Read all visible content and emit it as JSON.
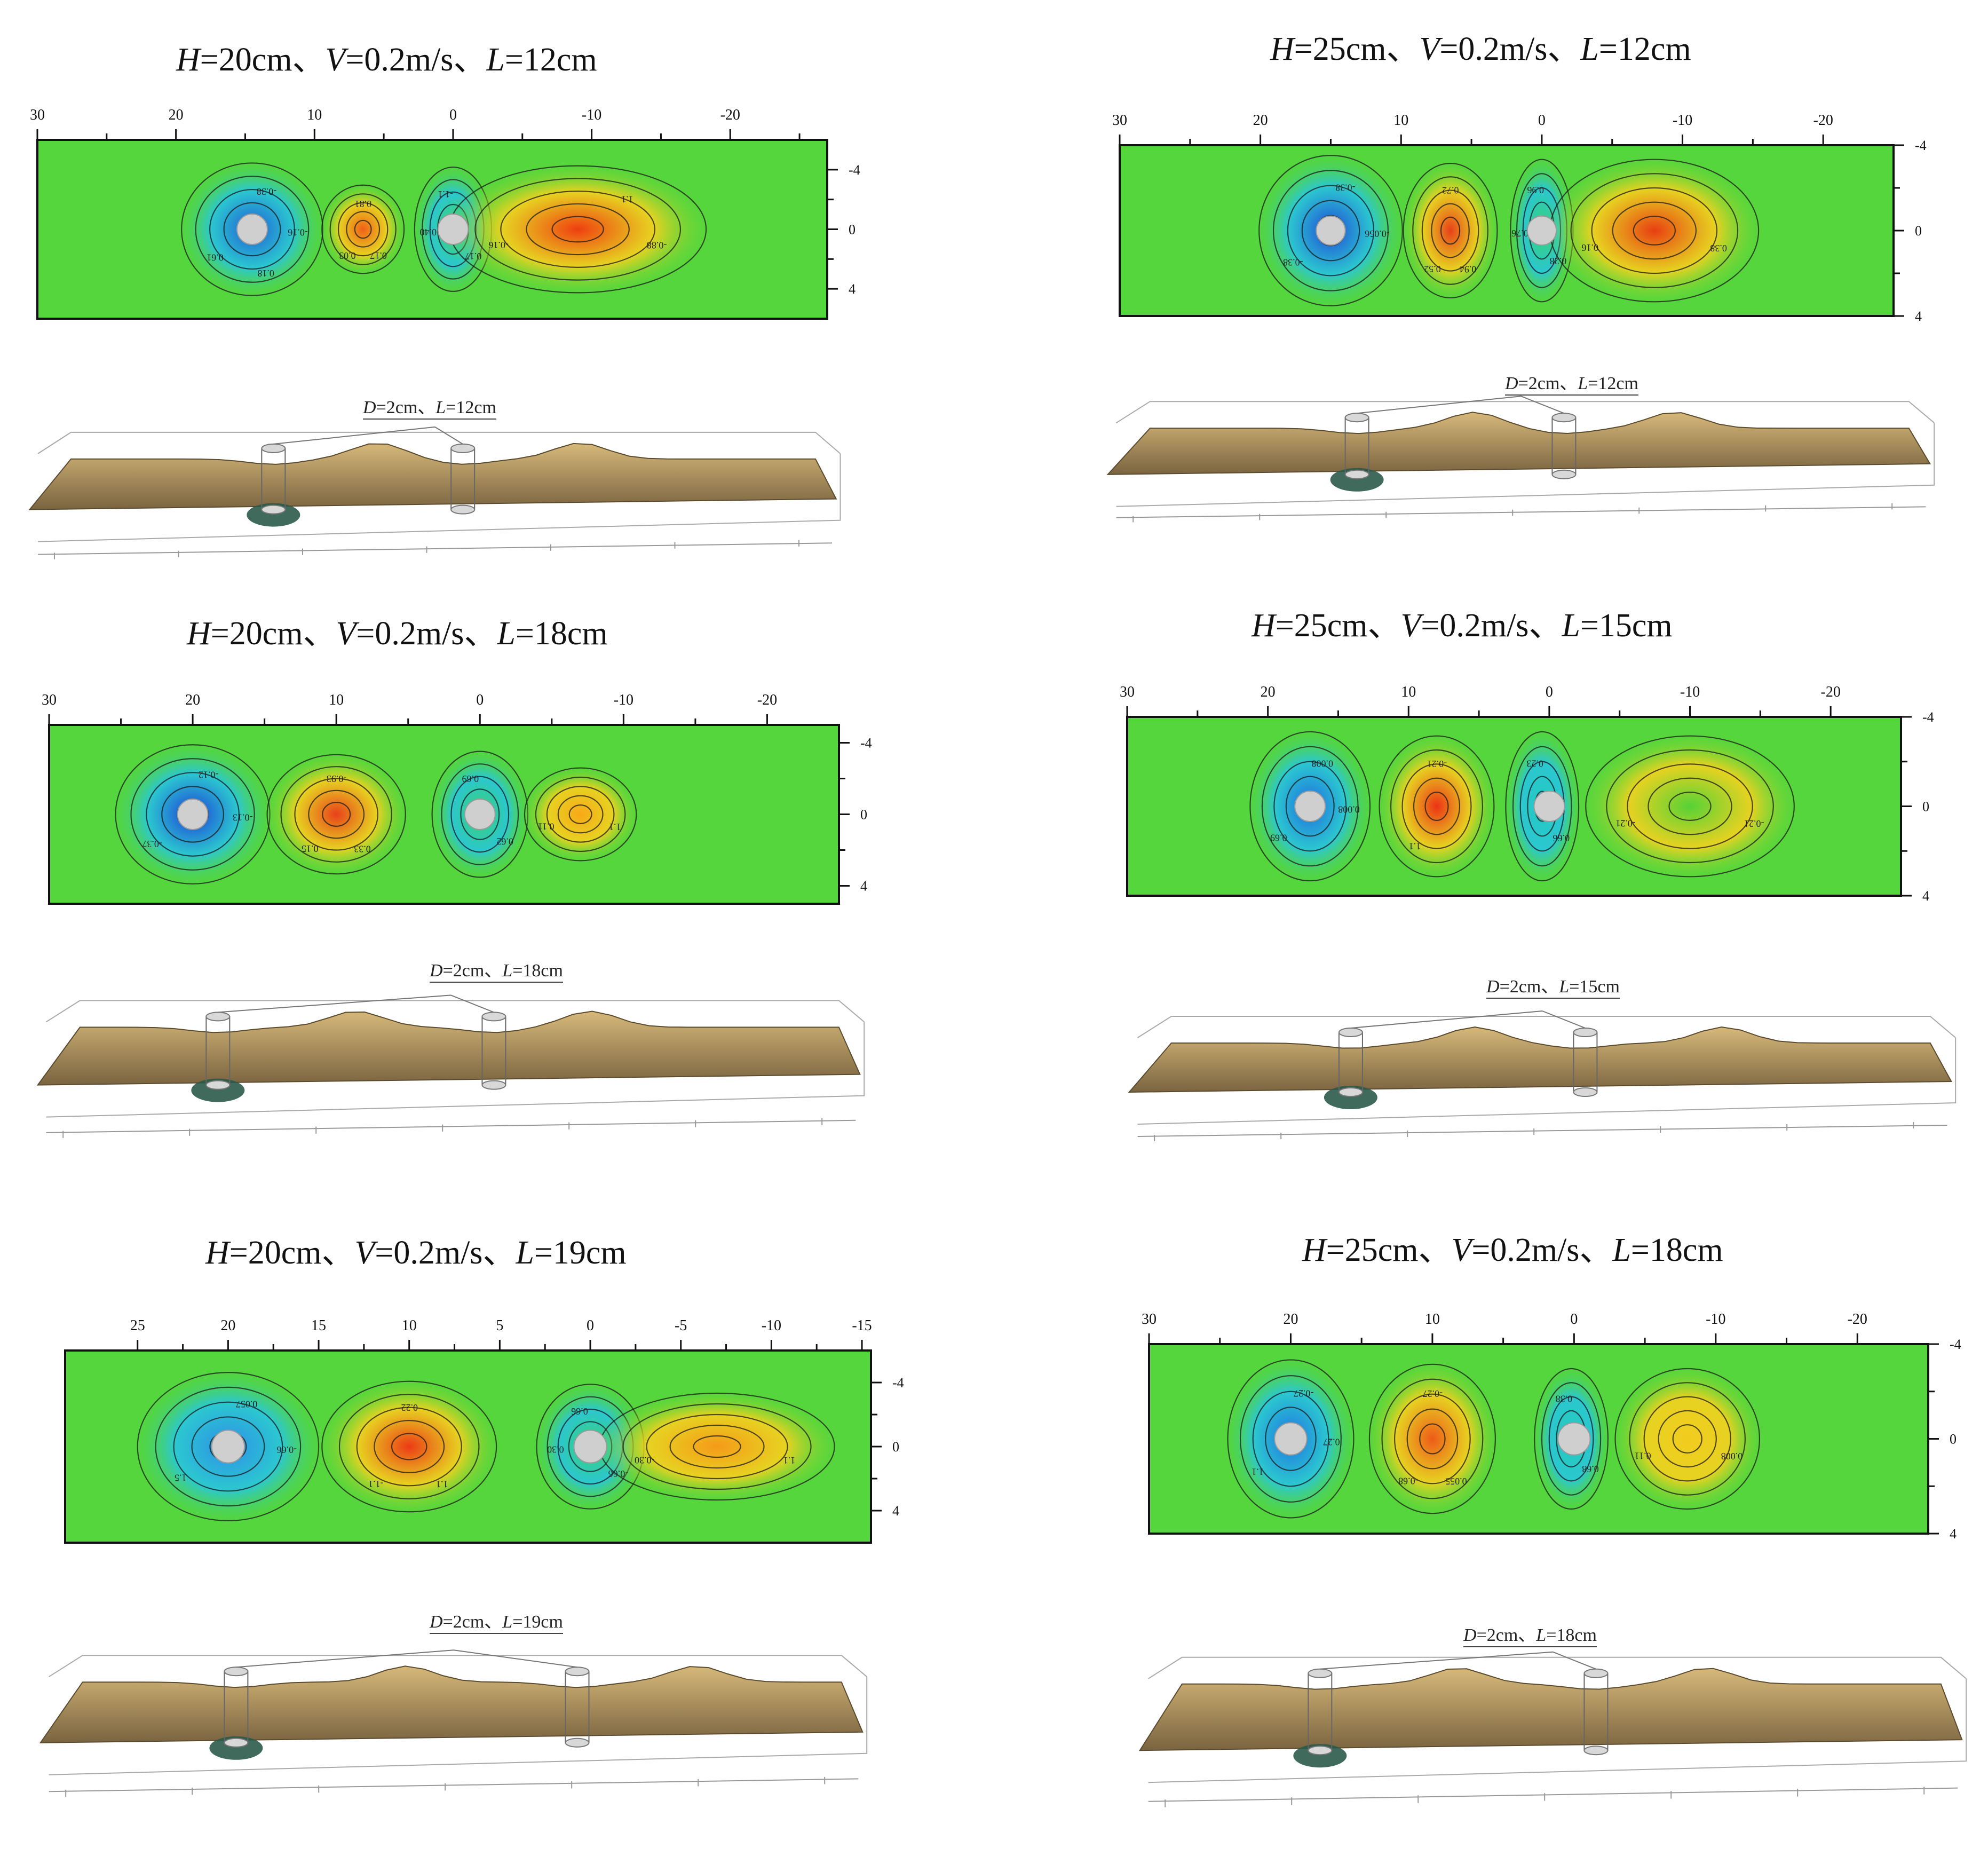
{
  "chart_data": [
    {
      "type": "heatmap",
      "title": {
        "H": "H",
        "h_val": "=20cm、",
        "V": "V",
        "v_val": "=0.2m/s、",
        "L": "L",
        "l_val": "=12cm"
      },
      "x_ticks": [
        "30",
        "20",
        "10",
        "0",
        "-10",
        "-20"
      ],
      "x_tick_values": [
        30,
        20,
        10,
        0,
        -10,
        -20
      ],
      "x_range": [
        30,
        -27
      ],
      "y_ticks": [
        "-4",
        "0",
        "4"
      ],
      "y_tick_values": [
        -4,
        0,
        4
      ],
      "y_range": [
        -6,
        6
      ],
      "piers_x": [
        14.5,
        0
      ],
      "blobs": [
        {
          "x": 14.5,
          "y": 0,
          "rx": 5.5,
          "ry": 4.8,
          "color": "#1f5bd6",
          "kind": "scour"
        },
        {
          "x": 6.5,
          "y": 0,
          "rx": 3.2,
          "ry": 3.2,
          "color": "#f06018",
          "kind": "deposit"
        },
        {
          "x": 0,
          "y": 0,
          "rx": 3.0,
          "ry": 4.5,
          "color": "#3ad46a",
          "kind": "scour"
        },
        {
          "x": -9,
          "y": 0,
          "rx": 10,
          "ry": 4.6,
          "color": "#ef3e10",
          "kind": "deposit"
        }
      ],
      "contour_labels": [
        "-0.16",
        "0.03",
        "-1.1",
        "-0.88",
        "0.61",
        "0.81",
        "0.17",
        "-0.16",
        "-0.38",
        "0.17",
        "0.40",
        "1.1",
        "0.18"
      ],
      "subtitle": {
        "D": "D",
        "d_val": "=2cm、",
        "L": "L",
        "l_val": "=12cm"
      }
    },
    {
      "type": "heatmap",
      "title": {
        "H": "H",
        "h_val": "=25cm、",
        "V": "V",
        "v_val": "=0.2m/s、",
        "L": "L",
        "l_val": "=12cm"
      },
      "x_ticks": [
        "30",
        "20",
        "10",
        "0",
        "-10",
        "-20"
      ],
      "x_tick_values": [
        30,
        20,
        10,
        0,
        -10,
        -20
      ],
      "x_range": [
        30,
        -25
      ],
      "y_ticks": [
        "-4",
        "0",
        "4"
      ],
      "y_tick_values": [
        -4,
        0,
        4
      ],
      "y_range": [
        -4,
        4
      ],
      "piers_x": [
        15,
        0
      ],
      "blobs": [
        {
          "x": 15,
          "y": 0,
          "rx": 5.5,
          "ry": 3.8,
          "color": "#1f48d8",
          "kind": "scour"
        },
        {
          "x": 6.5,
          "y": 0,
          "rx": 3.6,
          "ry": 3.4,
          "color": "#e8401a",
          "kind": "deposit"
        },
        {
          "x": 0,
          "y": 0,
          "rx": 2.4,
          "ry": 3.6,
          "color": "#36d26c",
          "kind": "scour"
        },
        {
          "x": -8,
          "y": 0,
          "rx": 8,
          "ry": 3.6,
          "color": "#e83e12",
          "kind": "deposit"
        }
      ],
      "contour_labels": [
        "-0.056",
        "0.52",
        "0.96",
        "0.38",
        "-0.38",
        "0.72",
        "0.28",
        "0.16",
        "-0.38",
        "0.94",
        "-0.76"
      ],
      "subtitle": {
        "D": "D",
        "d_val": "=2cm、",
        "L": "L",
        "l_val": "=12cm"
      }
    },
    {
      "type": "heatmap",
      "title": {
        "H": "H",
        "h_val": "=20cm、",
        "V": "V",
        "v_val": "=0.2m/s、",
        "L": "L",
        "l_val": "=18cm"
      },
      "x_ticks": [
        "30",
        "20",
        "10",
        "0",
        "-10",
        "-20"
      ],
      "x_tick_values": [
        30,
        20,
        10,
        0,
        -10,
        -20
      ],
      "x_range": [
        30,
        -25
      ],
      "y_ticks": [
        "-4",
        "0",
        "4"
      ],
      "y_tick_values": [
        -4,
        0,
        4
      ],
      "y_range": [
        -5,
        5
      ],
      "piers_x": [
        20,
        0
      ],
      "blobs": [
        {
          "x": 20,
          "y": 0,
          "rx": 5.8,
          "ry": 4.2,
          "color": "#1c3ed8",
          "kind": "scour"
        },
        {
          "x": 10,
          "y": 0,
          "rx": 5.2,
          "ry": 3.6,
          "color": "#e8401a",
          "kind": "deposit"
        },
        {
          "x": 0,
          "y": 0,
          "rx": 3.6,
          "ry": 3.8,
          "color": "#38d06a",
          "kind": "scour"
        },
        {
          "x": -7,
          "y": 0,
          "rx": 4.2,
          "ry": 2.8,
          "color": "#f8a818",
          "kind": "deposit"
        }
      ],
      "contour_labels": [
        "-0.13",
        "0.15",
        "0.69",
        "1.1",
        "-0.37",
        "-0.93",
        "0.62",
        "0.11",
        "-0.12",
        "0.33"
      ],
      "subtitle": {
        "D": "D",
        "d_val": "=2cm、",
        "L": "L",
        "l_val": "=18cm"
      }
    },
    {
      "type": "heatmap",
      "title": {
        "H": "H",
        "h_val": "=25cm、",
        "V": "V",
        "v_val": "=0.2m/s、",
        "L": "L",
        "l_val": "=15cm"
      },
      "x_ticks": [
        "30",
        "20",
        "10",
        "0",
        "-10",
        "-20"
      ],
      "x_tick_values": [
        30,
        20,
        10,
        0,
        -10,
        -20
      ],
      "x_range": [
        30,
        -25
      ],
      "y_ticks": [
        "-4",
        "0",
        "4"
      ],
      "y_tick_values": [
        -4,
        0,
        4
      ],
      "y_range": [
        -4,
        4
      ],
      "piers_x": [
        17,
        0
      ],
      "blobs": [
        {
          "x": 17,
          "y": 0,
          "rx": 4.6,
          "ry": 3.6,
          "color": "#1e6ae0",
          "kind": "scour"
        },
        {
          "x": 8,
          "y": 0,
          "rx": 4.4,
          "ry": 3.4,
          "color": "#ec3216",
          "kind": "deposit"
        },
        {
          "x": 0.5,
          "y": 0,
          "rx": 2.8,
          "ry": 3.6,
          "color": "#22c8c0",
          "kind": "scour"
        },
        {
          "x": -10,
          "y": 0,
          "rx": 8,
          "ry": 3.4,
          "color": "#54d236",
          "kind": "deposit"
        }
      ],
      "contour_labels": [
        "0.008",
        "1.1",
        "0.23",
        "-0.21",
        "0.69",
        "-0.21",
        "0.66",
        "-0.21",
        "0.008"
      ],
      "subtitle": {
        "D": "D",
        "d_val": "=2cm、",
        "L": "L",
        "l_val": "=15cm"
      }
    },
    {
      "type": "heatmap",
      "title": {
        "H": "H",
        "h_val": "=20cm、",
        "V": "V",
        "v_val": "=0.2m/s、",
        "L": "L",
        "l_val": "=19cm"
      },
      "x_ticks": [
        "25",
        "20",
        "15",
        "10",
        "5",
        "0",
        "-5",
        "-10",
        "-15"
      ],
      "x_tick_values": [
        25,
        20,
        15,
        10,
        5,
        0,
        -5,
        -10,
        -15
      ],
      "x_range": [
        29,
        -15.5
      ],
      "y_ticks": [
        "-4",
        "0",
        "4"
      ],
      "y_tick_values": [
        -4,
        0,
        4
      ],
      "y_range": [
        -6,
        6
      ],
      "piers_x": [
        20,
        0
      ],
      "blobs": [
        {
          "x": 20,
          "y": 0,
          "rx": 5.4,
          "ry": 5.0,
          "color": "#2e8ee8",
          "kind": "scour"
        },
        {
          "x": 10,
          "y": 0,
          "rx": 5.2,
          "ry": 4.4,
          "color": "#ec3a16",
          "kind": "deposit"
        },
        {
          "x": 0,
          "y": 0,
          "rx": 3.2,
          "ry": 4.2,
          "color": "#38d070",
          "kind": "scour"
        },
        {
          "x": -7,
          "y": 0,
          "rx": 7,
          "ry": 3.6,
          "color": "#f59a18",
          "kind": "deposit"
        }
      ],
      "contour_labels": [
        "-0.66",
        "-1.1",
        "0.66",
        "1.1",
        "1.5",
        "0.22",
        "-0.66",
        "-0.30",
        "0.057",
        "1.1",
        "0.30"
      ],
      "subtitle": {
        "D": "D",
        "d_val": "=2cm、",
        "L": "L",
        "l_val": "=19cm"
      }
    },
    {
      "type": "heatmap",
      "title": {
        "H": "H",
        "h_val": "=25cm、",
        "V": "V",
        "v_val": "=0.2m/s、",
        "L": "L",
        "l_val": "=18cm"
      },
      "x_ticks": [
        "30",
        "20",
        "10",
        "0",
        "-10",
        "-20"
      ],
      "x_tick_values": [
        30,
        20,
        10,
        0,
        -10,
        -20
      ],
      "x_range": [
        30,
        -25
      ],
      "y_ticks": [
        "-4",
        "0",
        "4"
      ],
      "y_tick_values": [
        -4,
        0,
        4
      ],
      "y_range": [
        -4,
        4
      ],
      "piers_x": [
        20,
        0
      ],
      "blobs": [
        {
          "x": 20,
          "y": 0,
          "rx": 4.8,
          "ry": 3.6,
          "color": "#1e72e2",
          "kind": "scour"
        },
        {
          "x": 10,
          "y": 0,
          "rx": 4.8,
          "ry": 3.4,
          "color": "#ee5a18",
          "kind": "deposit"
        },
        {
          "x": 0.2,
          "y": 0,
          "rx": 2.8,
          "ry": 3.2,
          "color": "#22c8b8",
          "kind": "scour"
        },
        {
          "x": -8,
          "y": 0,
          "rx": 5.5,
          "ry": 3.2,
          "color": "#f2cc20",
          "kind": "deposit"
        }
      ],
      "contour_labels": [
        "0.27",
        "-0.68",
        "0.38",
        "0.008",
        "1.1",
        "-0.27",
        "0.68",
        "0.11",
        "-0.27",
        "0.055"
      ],
      "subtitle": {
        "D": "D",
        "d_val": "=2cm、",
        "L": "L",
        "l_val": "=18cm"
      }
    }
  ],
  "colors": {
    "field": "#54d63c",
    "surface": "#d6b879",
    "surface_dark": "#7a6440",
    "pier": "#cfcfcf"
  }
}
